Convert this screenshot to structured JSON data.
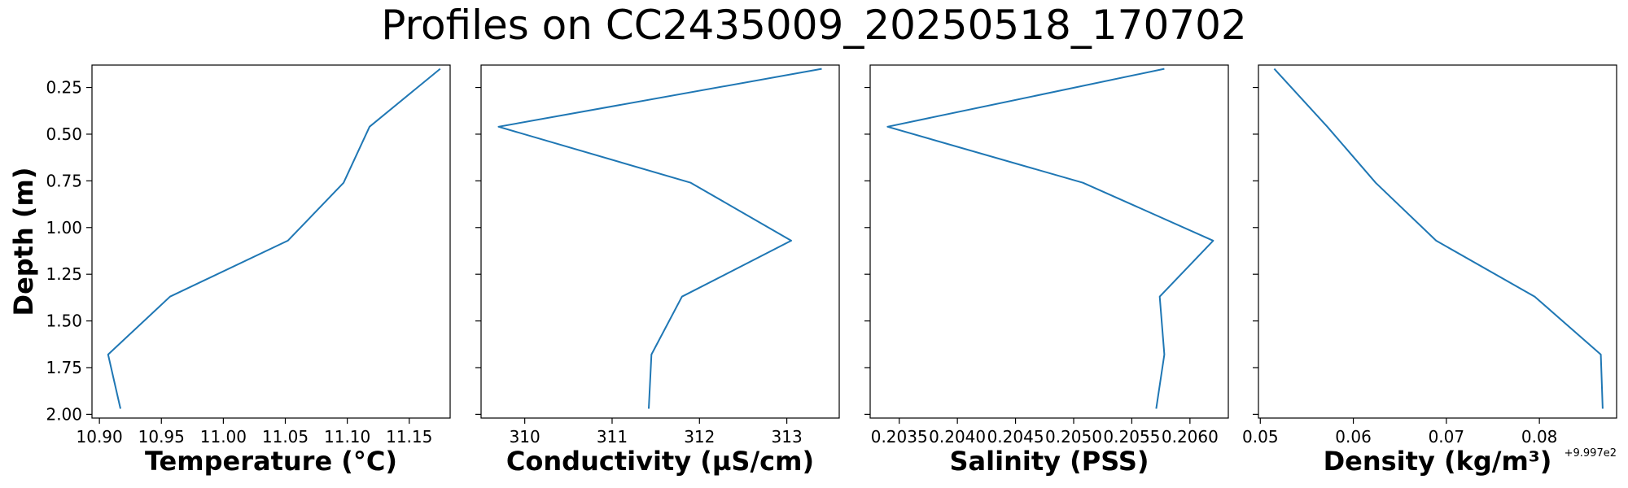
{
  "figure_title": "Profiles on CC2435009_20250518_170702",
  "chart_data": [
    {
      "type": "line",
      "xlabel": "Temperature (°C)",
      "ylabel": "Depth (m)",
      "xlim": [
        10.894,
        11.183
      ],
      "ylim": [
        2.02,
        0.13
      ],
      "y_inverted": true,
      "xticks": [
        10.9,
        10.95,
        11.0,
        11.05,
        11.1,
        11.15
      ],
      "xtick_labels": [
        "10.90",
        "10.95",
        "11.00",
        "11.05",
        "11.10",
        "11.15"
      ],
      "yticks": [
        0.25,
        0.5,
        0.75,
        1.0,
        1.25,
        1.5,
        1.75,
        2.0
      ],
      "ytick_labels": [
        "0.25",
        "0.50",
        "0.75",
        "1.00",
        "1.25",
        "1.50",
        "1.75",
        "2.00"
      ],
      "x": [
        11.175,
        11.118,
        11.097,
        11.052,
        10.957,
        10.907,
        10.917
      ],
      "y": [
        0.15,
        0.46,
        0.76,
        1.07,
        1.37,
        1.68,
        1.97
      ],
      "color": "#1f77b4",
      "grid": false
    },
    {
      "type": "line",
      "xlabel": "Conductivity (µS/cm)",
      "xlim": [
        309.5,
        313.6
      ],
      "ylim": [
        2.02,
        0.13
      ],
      "y_inverted": true,
      "xticks": [
        310,
        311,
        312,
        313
      ],
      "xtick_labels": [
        "310",
        "311",
        "312",
        "313"
      ],
      "x": [
        313.4,
        309.7,
        311.9,
        313.05,
        311.8,
        311.45,
        311.42
      ],
      "y": [
        0.15,
        0.46,
        0.76,
        1.07,
        1.37,
        1.68,
        1.97
      ],
      "color": "#1f77b4",
      "grid": false
    },
    {
      "type": "line",
      "xlabel": "Salinity (PSS)",
      "xlim": [
        0.20325,
        0.20633
      ],
      "ylim": [
        2.02,
        0.13
      ],
      "y_inverted": true,
      "xticks": [
        0.2035,
        0.204,
        0.2045,
        0.205,
        0.2055,
        0.206
      ],
      "xtick_labels": [
        "0.2035",
        "0.2040",
        "0.2045",
        "0.2050",
        "0.2055",
        "0.2060"
      ],
      "x": [
        0.20578,
        0.2034,
        0.20508,
        0.2062,
        0.20574,
        0.20578,
        0.20571
      ],
      "y": [
        0.15,
        0.46,
        0.76,
        1.07,
        1.37,
        1.68,
        1.97
      ],
      "color": "#1f77b4",
      "grid": false
    },
    {
      "type": "line",
      "xlabel": "Density (kg/m³)",
      "x_offset_text": "+9.997e2",
      "xlim": [
        0.0498,
        0.0883
      ],
      "ylim": [
        2.02,
        0.13
      ],
      "y_inverted": true,
      "xticks": [
        0.05,
        0.06,
        0.07,
        0.08
      ],
      "xtick_labels": [
        "0.05",
        "0.06",
        "0.07",
        "0.08"
      ],
      "x": [
        0.0515,
        0.0572,
        0.0624,
        0.0689,
        0.0795,
        0.0866,
        0.0868
      ],
      "y": [
        0.15,
        0.46,
        0.76,
        1.07,
        1.37,
        1.68,
        1.97
      ],
      "color": "#1f77b4",
      "grid": false
    }
  ]
}
